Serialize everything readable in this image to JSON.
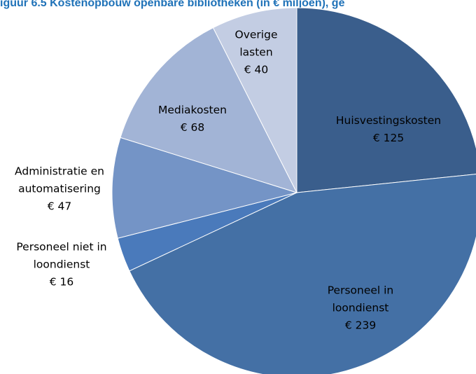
{
  "chart_data": {
    "type": "pie",
    "title": "iguur 6.5    Kostenopbouw openbare bibliotheken (in € miljoen), ge",
    "categories": [
      "Huisvestingskosten",
      "Personeel in loondienst",
      "Personeel niet in loondienst",
      "Administratie en automatisering",
      "Mediakosten",
      "Overige lasten"
    ],
    "values": [
      125,
      239,
      16,
      47,
      68,
      40
    ],
    "value_labels": [
      "€ 125",
      "€ 239",
      "€ 16",
      "€ 47",
      "€ 68",
      "€ 40"
    ],
    "colors": [
      "#3a5e8c",
      "#4470a5",
      "#4a7abb",
      "#7494c6",
      "#a2b4d6",
      "#c3cde3"
    ]
  }
}
